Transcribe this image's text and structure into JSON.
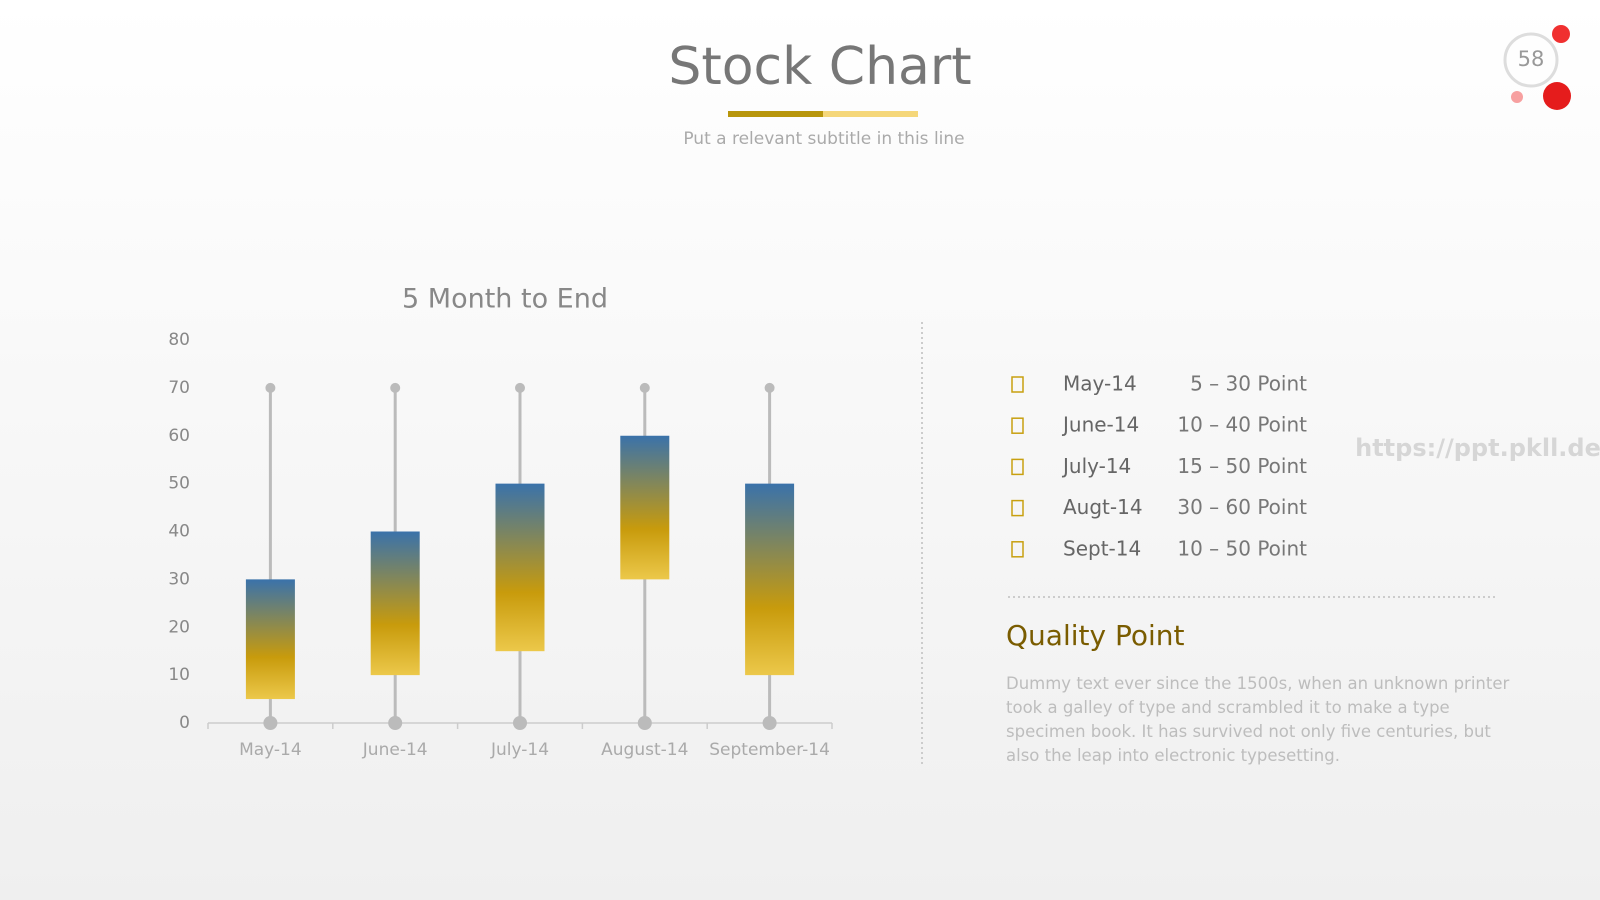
{
  "header": {
    "title": "Stock Chart",
    "subtitle": "Put a relevant subtitle in this line",
    "page_number": 58
  },
  "chart_data": {
    "type": "candlestick",
    "title": "5 Month to End",
    "categories": [
      "May-14",
      "June-14",
      "July-14",
      "August-14",
      "September-14"
    ],
    "open": [
      5,
      10,
      15,
      30,
      10
    ],
    "close": [
      30,
      40,
      50,
      60,
      50
    ],
    "high": [
      70,
      70,
      70,
      70,
      70
    ],
    "low": [
      0,
      0,
      0,
      0,
      0
    ],
    "ylim": [
      0,
      80
    ],
    "yticks": [
      0,
      10,
      20,
      30,
      40,
      50,
      60,
      70,
      80
    ]
  },
  "list": {
    "items": [
      {
        "label": "May-14",
        "range": "5 – 30 Point"
      },
      {
        "label": "June-14",
        "range": "10 – 40 Point"
      },
      {
        "label": "July-14",
        "range": "15 – 50 Point"
      },
      {
        "label": "Augt-14",
        "range": "30 – 60 Point"
      },
      {
        "label": "Sept-14",
        "range": "10 – 50 Point"
      }
    ]
  },
  "quality": {
    "title": "Quality Point",
    "text": "Dummy text ever since the 1500s, when an unknown printer took a galley of type and scrambled it to make a type specimen book. It has survived not only five centuries, but also the leap into electronic typesetting."
  },
  "watermark": "https://ppt.pkll.de"
}
